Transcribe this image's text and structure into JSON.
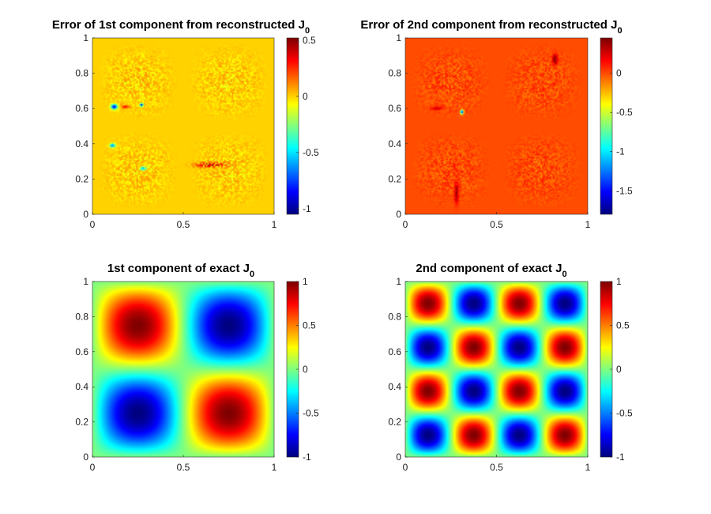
{
  "chart_data": [
    {
      "type": "heatmap",
      "title": "Error of 1st component from reconstructed J",
      "title_subscript": "0",
      "field": "error_component_1",
      "background_value": 0.0,
      "xlim": [
        0,
        1
      ],
      "ylim": [
        0,
        1
      ],
      "xticks": [
        "0",
        "0.5",
        "1"
      ],
      "yticks": [
        "0",
        "0.2",
        "0.4",
        "0.6",
        "0.8",
        "1"
      ],
      "colorbar": {
        "colormap": "jet",
        "clim": [
          -1.05,
          0.52
        ],
        "ticks": [
          0.5,
          0,
          -0.5,
          -1
        ],
        "tick_labels": [
          "0.5",
          "0",
          "-0.5",
          "-1"
        ]
      }
    },
    {
      "type": "heatmap",
      "title": "Error of 2nd component from reconstructed J",
      "title_subscript": "0",
      "field": "error_component_2",
      "background_value": 0.0,
      "xlim": [
        0,
        1
      ],
      "ylim": [
        0,
        1
      ],
      "xticks": [
        "0",
        "0.5",
        "1"
      ],
      "yticks": [
        "0",
        "0.2",
        "0.4",
        "0.6",
        "0.8",
        "1"
      ],
      "colorbar": {
        "colormap": "jet",
        "clim": [
          -1.8,
          0.45
        ],
        "ticks": [
          0,
          -0.5,
          -1,
          -1.5
        ],
        "tick_labels": [
          "0",
          "-0.5",
          "-1",
          "-1.5"
        ]
      }
    },
    {
      "type": "heatmap",
      "title": "1st component of exact J",
      "title_subscript": "0",
      "field": "-sin(2πx)·sin(2πy)",
      "xlim": [
        0,
        1
      ],
      "ylim": [
        0,
        1
      ],
      "xticks": [
        "0",
        "0.5",
        "1"
      ],
      "yticks": [
        "0",
        "0.2",
        "0.4",
        "0.6",
        "0.8",
        "1"
      ],
      "colorbar": {
        "colormap": "jet",
        "clim": [
          -1,
          1
        ],
        "ticks": [
          1,
          0.5,
          0,
          -0.5,
          -1
        ],
        "tick_labels": [
          "1",
          "0.5",
          "0",
          "-0.5",
          "-1"
        ]
      }
    },
    {
      "type": "heatmap",
      "title": "2nd component of exact J",
      "title_subscript": "0",
      "field": "-sin(4πx)·sin(4πy)",
      "xlim": [
        0,
        1
      ],
      "ylim": [
        0,
        1
      ],
      "xticks": [
        "0",
        "0.5",
        "1"
      ],
      "yticks": [
        "0",
        "0.2",
        "0.4",
        "0.6",
        "0.8",
        "1"
      ],
      "colorbar": {
        "colormap": "jet",
        "clim": [
          -1,
          1
        ],
        "ticks": [
          1,
          0.5,
          0,
          -0.5,
          -1
        ],
        "tick_labels": [
          "1",
          "0.5",
          "0",
          "-0.5",
          "-1"
        ]
      }
    }
  ]
}
